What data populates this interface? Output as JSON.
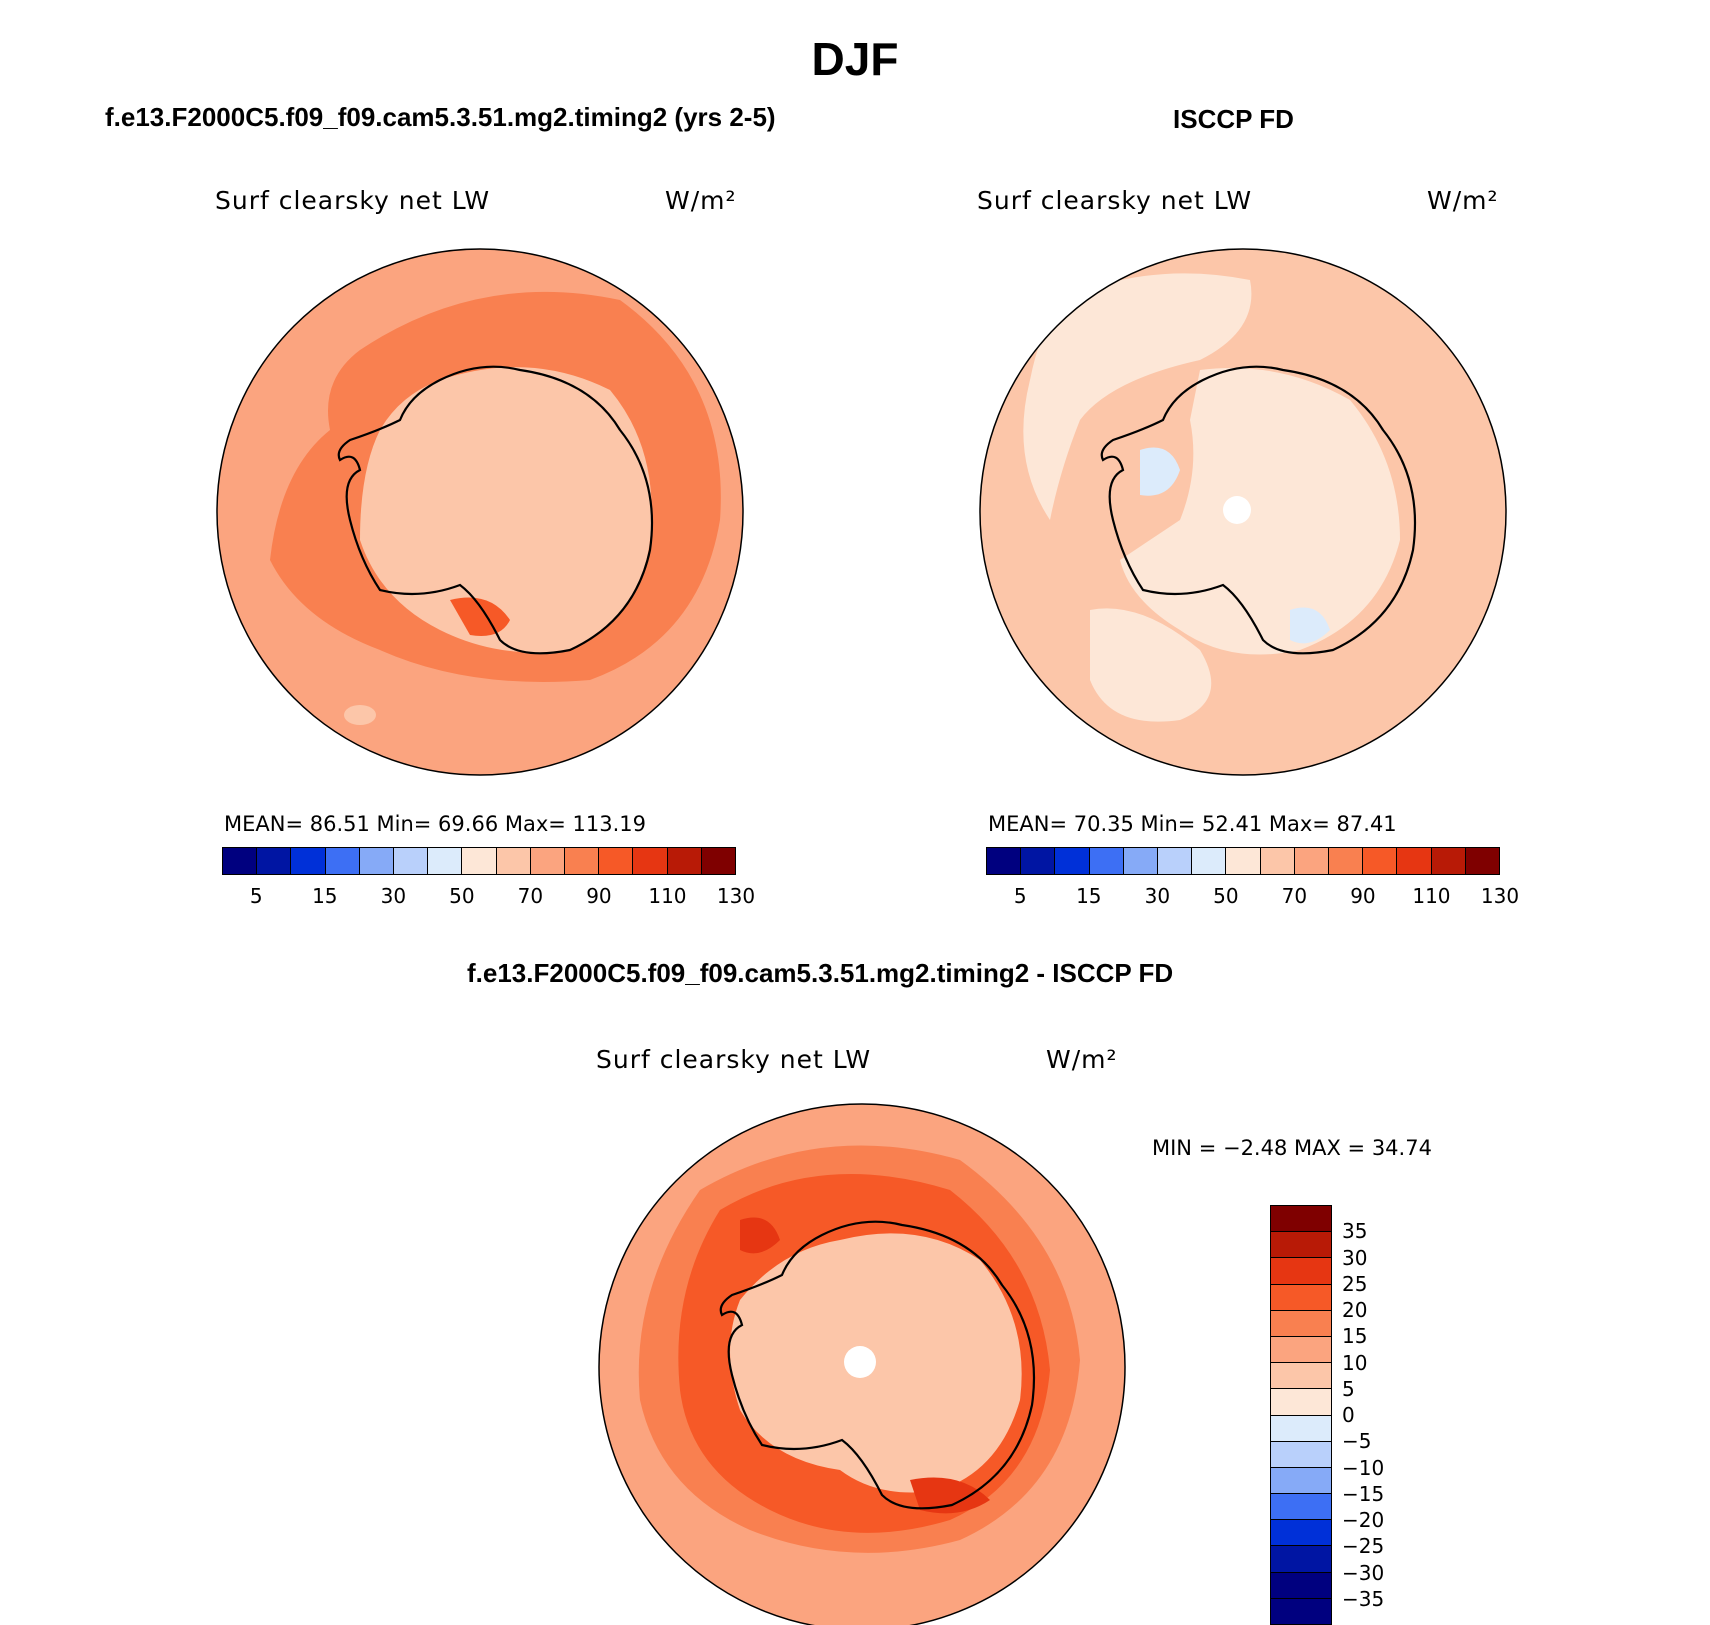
{
  "title": "DJF",
  "panels": [
    {
      "id": "model",
      "header": "f.e13.F2000C5.f09_f09.cam5.3.51.mg2.timing2 (yrs 2-5)",
      "variable": "Surf clearsky net LW",
      "units": "W/m²",
      "stats_text": "MEAN=   86.51   Min=   69.66   Max= 113.19",
      "stats": {
        "mean": 86.51,
        "min": 69.66,
        "max": 113.19
      }
    },
    {
      "id": "obs",
      "header": "ISCCP FD",
      "variable": "Surf clearsky net LW",
      "units": "W/m²",
      "stats_text": "MEAN=   70.35   Min=   52.41   Max=   87.41",
      "stats": {
        "mean": 70.35,
        "min": 52.41,
        "max": 87.41
      }
    },
    {
      "id": "diff",
      "header": "f.e13.F2000C5.f09_f09.cam5.3.51.mg2.timing2 - ISCCP FD",
      "variable": "Surf clearsky net LW",
      "units": "W/m²",
      "stats_text": "MIN =   −2.48 MAX =   34.74",
      "stats": {
        "min": -2.48,
        "max": 34.74
      }
    }
  ],
  "abs_colorbar": {
    "tick_labels": [
      "5",
      "15",
      "30",
      "50",
      "70",
      "90",
      "110",
      "130"
    ],
    "colors": [
      "#00007f",
      "#0015a3",
      "#0030d8",
      "#3d6ff4",
      "#86aaf7",
      "#b9d0fb",
      "#dcebfb",
      "#fde7d7",
      "#fcc6a9",
      "#fba47f",
      "#f98050",
      "#f65927",
      "#e63612",
      "#b81a06",
      "#7f0000"
    ]
  },
  "diff_colorbar": {
    "tick_labels": [
      "35",
      "30",
      "25",
      "20",
      "15",
      "10",
      "5",
      "0",
      "−5",
      "−10",
      "−15",
      "−20",
      "−25",
      "−30",
      "−35"
    ],
    "colors": [
      "#7f0000",
      "#b81a06",
      "#e63612",
      "#f65927",
      "#f98050",
      "#fba47f",
      "#fcc6a9",
      "#fde7d7",
      "#dcebfb",
      "#b9d0fb",
      "#86aaf7",
      "#3d6ff4",
      "#0030d8",
      "#0015a3",
      "#00007f",
      "#00007f"
    ]
  },
  "field_colors": {
    "model_base": "#fba47f",
    "model_ring": "#f98050",
    "model_ice": "#fcc6a9",
    "model_max": "#f65927",
    "obs_base": "#fcc6a9",
    "obs_light": "#fde7d7",
    "obs_neg": "#dcebfb",
    "diff_outer": "#fba47f",
    "diff_ring": "#f65927",
    "diff_mid": "#f98050",
    "diff_ice": "#fcc6a9",
    "diff_dark": "#e63612"
  }
}
